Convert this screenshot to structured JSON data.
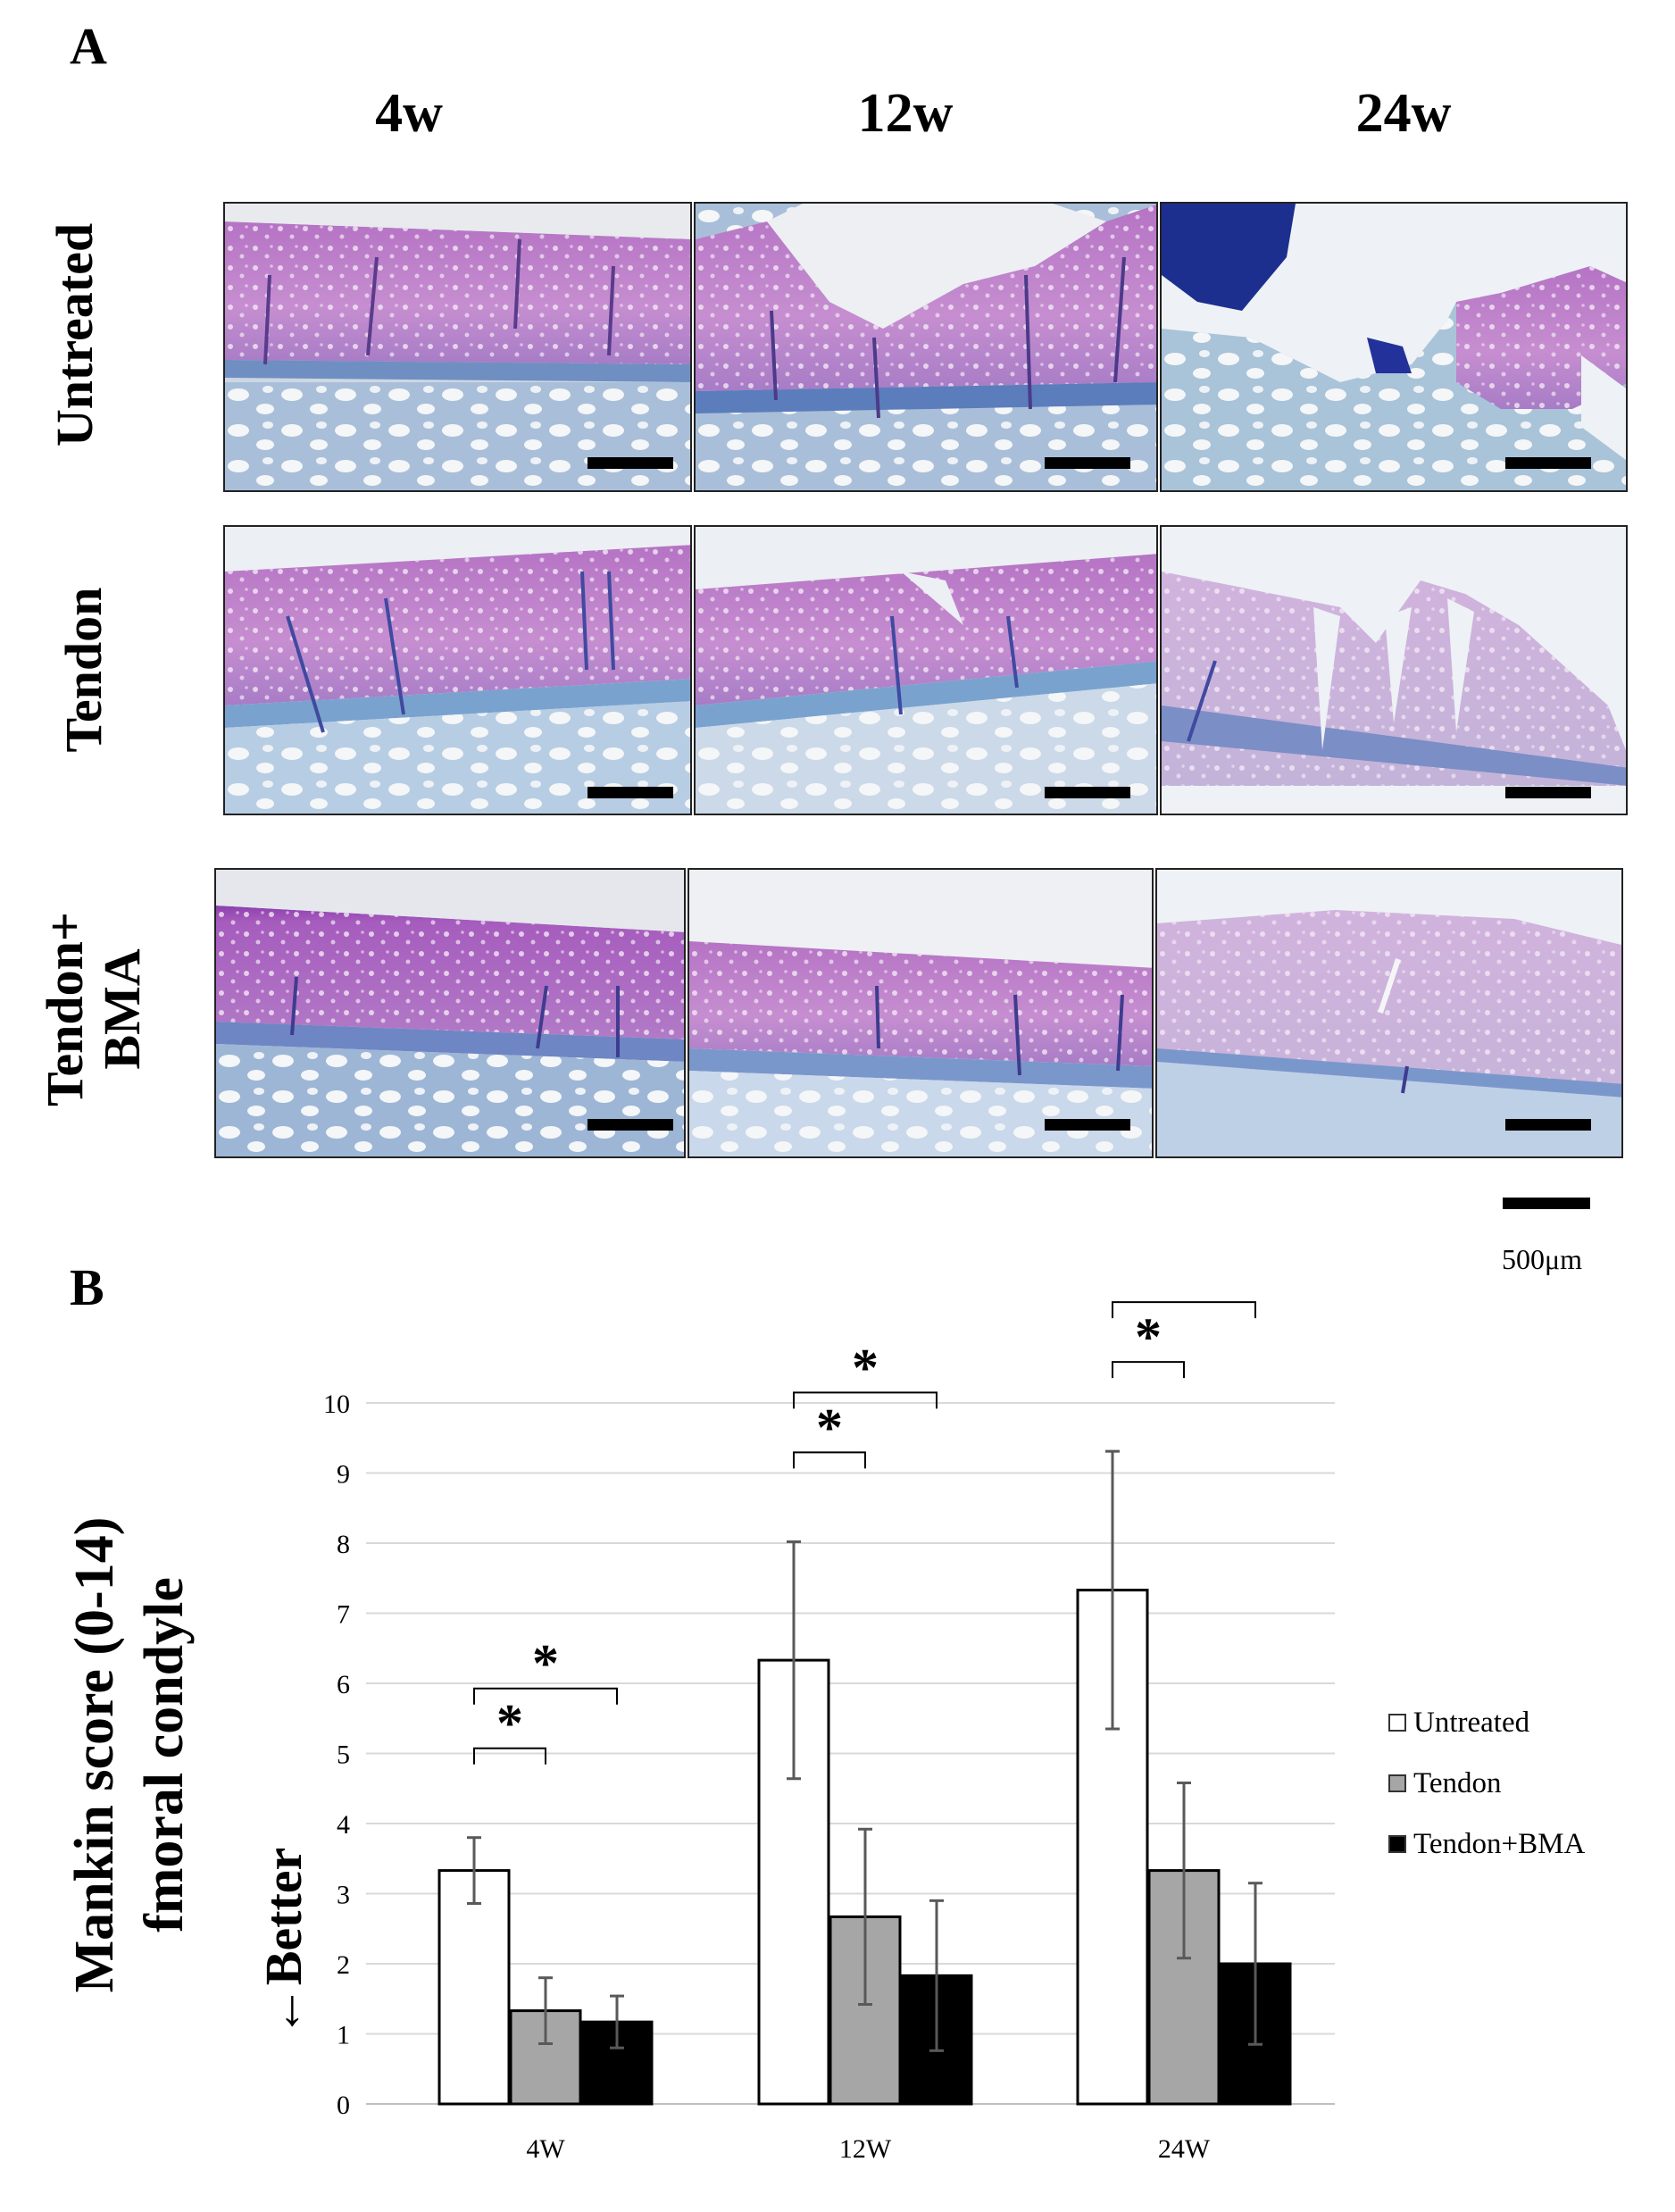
{
  "panelA": {
    "letter": "A",
    "columns": [
      "4w",
      "12w",
      "24w"
    ],
    "rows": [
      {
        "label": "Untreated"
      },
      {
        "label": "Tendon"
      },
      {
        "label_line1": "Tendon+",
        "label_line2": "BMA"
      }
    ],
    "scale_label": "500μm"
  },
  "panelB": {
    "letter": "B",
    "ylabel_line1": "Mankin score (0-14)",
    "ylabel_line2": "fmoral condyle",
    "better_label": "←Better"
  },
  "chart_data": {
    "type": "bar",
    "categories": [
      "4W",
      "12W",
      "24W"
    ],
    "series": [
      {
        "name": "Untreated",
        "color": "#ffffff",
        "values": [
          3.33,
          6.33,
          7.33
        ],
        "errors": [
          0.47,
          1.69,
          1.98
        ]
      },
      {
        "name": "Tendon",
        "color": "#a6a6a6",
        "values": [
          1.33,
          2.67,
          3.33
        ],
        "errors": [
          0.47,
          1.25,
          1.25
        ]
      },
      {
        "name": "Tendon+BMA",
        "color": "#000000",
        "values": [
          1.17,
          1.83,
          2.0
        ],
        "errors": [
          0.37,
          1.07,
          1.15
        ]
      }
    ],
    "ylim": [
      0,
      10
    ],
    "yticks": [
      0,
      1,
      2,
      3,
      4,
      5,
      6,
      7,
      8,
      9,
      10
    ],
    "grid": true,
    "legend": "right",
    "significance": [
      {
        "category": "4W",
        "from": "Untreated",
        "to": "Tendon",
        "label": "*",
        "level": 0
      },
      {
        "category": "4W",
        "from": "Untreated",
        "to": "Tendon+BMA",
        "label": "*",
        "level": 1
      },
      {
        "category": "12W",
        "from": "Untreated",
        "to": "Tendon",
        "label": "*",
        "level": 0
      },
      {
        "category": "12W",
        "from": "Untreated",
        "to": "Tendon+BMA",
        "label": "*",
        "level": 1
      },
      {
        "category": "24W",
        "from": "Untreated",
        "to": "Tendon",
        "label": "*",
        "level": 0
      },
      {
        "category": "24W",
        "from": "Untreated",
        "to": "Tendon+BMA",
        "label": "*",
        "level": 1
      }
    ]
  }
}
